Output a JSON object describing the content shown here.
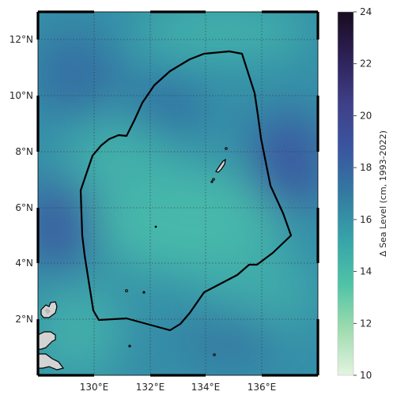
{
  "map": {
    "lon_ticks": [
      "130°E",
      "132°E",
      "134°E",
      "136°E"
    ],
    "lat_ticks": [
      "2°N",
      "4°N",
      "6°N",
      "8°N",
      "10°N",
      "12°N"
    ],
    "lon_range": [
      128,
      138
    ],
    "lat_range": [
      0,
      13
    ],
    "gridlines": true,
    "frame_style": "alternating black-white",
    "boundary_color": "#000000",
    "land_color": "#d3d3d3"
  },
  "colorbar": {
    "label": "Δ Sea Level (cm, 1993-2022)",
    "ticks": [
      "10",
      "12",
      "14",
      "16",
      "18",
      "20",
      "22",
      "24"
    ],
    "range": [
      10,
      24
    ],
    "colormap": [
      "#e3f4e0",
      "#9fdcaf",
      "#4fc3a6",
      "#37a3a9",
      "#337aa1",
      "#3a55a0",
      "#3f3f87",
      "#2d2157",
      "#190b1f"
    ]
  }
}
